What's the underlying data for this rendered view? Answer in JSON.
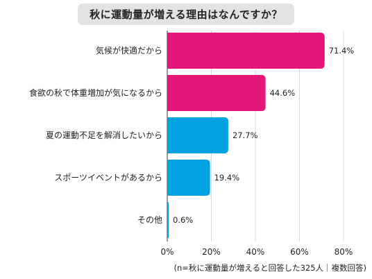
{
  "title": "秋に運動量が増える理由はなんですか？",
  "note": "(n=秋に運動量が増えると回答した325人｜複数回答)",
  "colors": {
    "highlight": "#e4167a",
    "normal": "#00a2e2",
    "grid": "#d9d9d9",
    "axis": "#333333"
  },
  "chart_data": {
    "type": "bar",
    "orientation": "horizontal",
    "categories": [
      "気候が快適だから",
      "食欲の秋で体重増加が気になるから",
      "夏の運動不足を解消したいから",
      "スポーツイベントがあるから",
      "その他"
    ],
    "values": [
      71.4,
      44.6,
      27.7,
      19.4,
      0.6
    ],
    "value_labels": [
      "71.4%",
      "44.6%",
      "27.7%",
      "19.4%",
      "0.6%"
    ],
    "bar_colors": [
      "#e4167a",
      "#e4167a",
      "#00a2e2",
      "#00a2e2",
      "#00a2e2"
    ],
    "xlim": [
      0,
      80
    ],
    "xticks": [
      0,
      20,
      40,
      60,
      80
    ],
    "xtick_labels": [
      "0%",
      "20%",
      "40%",
      "60%",
      "80%"
    ],
    "grid": true
  }
}
